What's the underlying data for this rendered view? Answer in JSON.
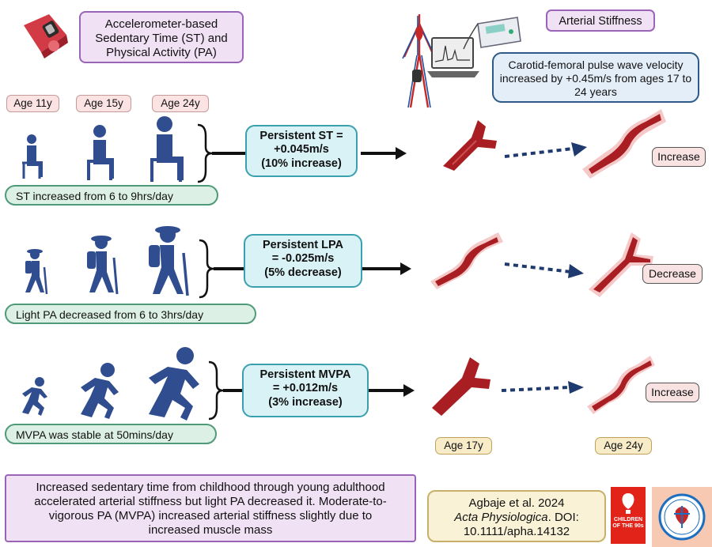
{
  "top": {
    "device_label": "Accelerometer-based Sedentary Time (ST) and Physical Activity (PA)",
    "stiffness_label": "Arterial Stiffness",
    "pwv_note": "Carotid-femoral pulse wave velocity increased by +0.45m/s from ages 17 to 24 years"
  },
  "ages": [
    "Age 11y",
    "Age 15y",
    "Age 24y"
  ],
  "rows": [
    {
      "trend": "ST increased from 6 to 9hrs/day",
      "finding_l1": "Persistent ST =",
      "finding_l2": "+0.045m/s",
      "finding_l3": "(10% increase)",
      "result": "Increase"
    },
    {
      "trend": "Light PA decreased from 6 to 3hrs/day",
      "finding_l1": "Persistent LPA",
      "finding_l2": "= -0.025m/s",
      "finding_l3": "(5% decrease)",
      "result": "Decrease"
    },
    {
      "trend": "MVPA was stable at 50mins/day",
      "finding_l1": "Persistent MVPA",
      "finding_l2": "= +0.012m/s",
      "finding_l3": "(3% increase)",
      "result": "Increase"
    }
  ],
  "follow_up": [
    "Age 17y",
    "Age 24y"
  ],
  "summary": "Increased sedentary time from childhood through young adulthood accelerated arterial stiffness but light PA decreased it. Moderate-to-vigorous PA (MVPA) increased arterial stiffness slightly due to increased muscle mass",
  "citation": {
    "authors": "Agbaje et al. 2024",
    "journal": "Acta Physiologica",
    "doi_suffix": ". DOI:",
    "doi": "10.1111/apha.14132"
  },
  "logos": {
    "children90s": "CHILDREN OF THE 90s"
  },
  "colors": {
    "figure": "#2f4d8f",
    "artery": "#a81e22",
    "artery_light": "#f6c9c9",
    "arrow": "#1f3a6e"
  }
}
